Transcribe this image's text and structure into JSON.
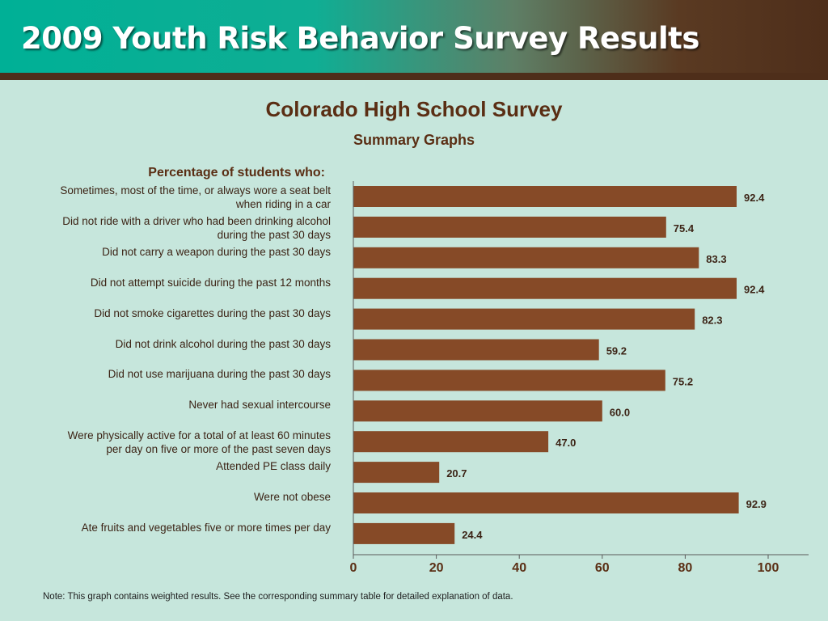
{
  "header": {
    "title": "2009 Youth Risk Behavior Survey Results"
  },
  "colors": {
    "bar": "#864a27",
    "text_brown": "#5a2e14",
    "background": "#c6e6dc"
  },
  "chart_data": {
    "type": "bar",
    "orientation": "horizontal",
    "title": "Colorado High School Survey",
    "subtitle": "Summary Graphs",
    "category_heading": "Percentage of students who:",
    "categories": [
      "Sometimes, most of the time, or always wore a seat belt when riding in a car",
      "Did not ride with a driver who had been drinking alcohol during the past 30 days",
      "Did not carry a weapon during the past 30 days",
      "Did not attempt suicide during the past 12 months",
      "Did not smoke cigarettes during the past 30 days",
      "Did not drink alcohol during the past 30 days",
      "Did not use marijuana during the past 30 days",
      "Never had sexual intercourse",
      "Were physically active for a total of at least 60 minutes per day on five or more of the past seven days",
      "Attended PE class daily",
      "Were not obese",
      "Ate fruits and vegetables five or more times per day"
    ],
    "label_lines": [
      [
        "Sometimes, most of the time, or always wore a seat belt",
        "when riding in a car"
      ],
      [
        "Did not ride with a driver who had been drinking alcohol",
        "during the past 30 days"
      ],
      [
        "Did not carry a weapon during the past 30 days"
      ],
      [
        "Did not attempt suicide during the past 12 months"
      ],
      [
        "Did not smoke cigarettes during the past 30 days"
      ],
      [
        "Did not drink alcohol during the past 30 days"
      ],
      [
        "Did not use marijuana during the past 30 days"
      ],
      [
        "Never had sexual intercourse"
      ],
      [
        "Were physically active for a total of at least 60 minutes",
        "per day on five or more of the past seven days"
      ],
      [
        "Attended PE class daily"
      ],
      [
        "Were not obese"
      ],
      [
        "Ate fruits and vegetables five or more times per day"
      ]
    ],
    "values": [
      92.4,
      75.4,
      83.3,
      92.4,
      82.3,
      59.2,
      75.2,
      60.0,
      47.0,
      20.7,
      92.9,
      24.4
    ],
    "value_labels": [
      "92.4",
      "75.4",
      "83.3",
      "92.4",
      "82.3",
      "59.2",
      "75.2",
      "60.0",
      "47.0",
      "20.7",
      "92.9",
      "24.4"
    ],
    "xlim": [
      0,
      110
    ],
    "xticks": [
      0,
      20,
      40,
      60,
      80,
      100
    ],
    "grid": false,
    "legend": "none"
  },
  "footnote": "Note: This graph contains weighted results. See the corresponding summary table for detailed explanation of data."
}
